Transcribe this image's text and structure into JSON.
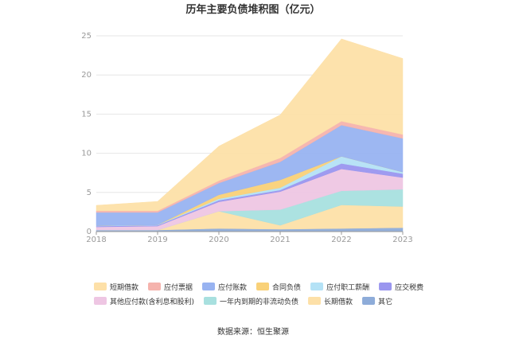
{
  "chart_data": {
    "type": "area",
    "stacked": true,
    "title": "历年主要负债堆积图（亿元）",
    "source": "数据来源：恒生聚源",
    "categories": [
      "2018",
      "2019",
      "2020",
      "2021",
      "2022",
      "2023"
    ],
    "ylim": [
      0,
      25
    ],
    "yticks": [
      "0",
      "5",
      "10",
      "15",
      "20",
      "25"
    ],
    "grid": true,
    "legend_position": "bottom",
    "series": [
      {
        "name": "其它",
        "color": "#8eacd9",
        "values": [
          0.2,
          0.2,
          0.4,
          0.3,
          0.4,
          0.5
        ]
      },
      {
        "name": "长期借款",
        "color": "#fde0a8",
        "values": [
          0,
          0,
          2.2,
          0.5,
          3.0,
          2.7
        ]
      },
      {
        "name": "一年内到期的非流动负债",
        "color": "#a8e0df",
        "values": [
          0,
          0,
          0,
          2.0,
          1.8,
          2.2
        ]
      },
      {
        "name": "其他应付款(含利息和股利)",
        "color": "#eec6e3",
        "values": [
          0.4,
          0.5,
          1.2,
          2.3,
          2.8,
          1.5
        ]
      },
      {
        "name": "应交税费",
        "color": "#9a96ef",
        "values": [
          0.1,
          0.1,
          0.2,
          0.2,
          0.7,
          0.5
        ]
      },
      {
        "name": "应付职工薪酬",
        "color": "#b4e2f6",
        "values": [
          0.05,
          0.05,
          0.2,
          0.3,
          0.9,
          0.2
        ]
      },
      {
        "name": "合同负债",
        "color": "#f9d178",
        "values": [
          0,
          0,
          0.5,
          1.0,
          0,
          0
        ]
      },
      {
        "name": "应付账款",
        "color": "#98b3f1",
        "values": [
          1.7,
          1.6,
          1.5,
          2.3,
          4.0,
          4.3
        ]
      },
      {
        "name": "应付票据",
        "color": "#f5b3ad",
        "values": [
          0.2,
          0.2,
          0.3,
          0.5,
          0.5,
          0.5
        ]
      },
      {
        "name": "短期借款",
        "color": "#fde0a8",
        "values": [
          0.7,
          1.2,
          4.4,
          5.5,
          10.5,
          9.7
        ]
      }
    ]
  }
}
